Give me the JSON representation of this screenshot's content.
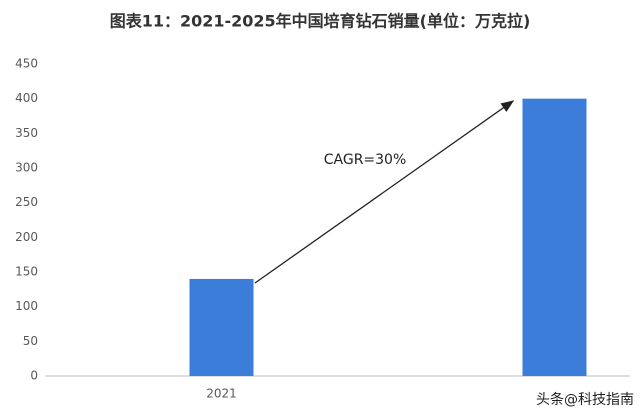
{
  "chart_data": {
    "type": "bar",
    "title": "图表11：2021-2025年中国培育钻石销量(单位：万克拉)",
    "categories": [
      "2021",
      null
    ],
    "values": [
      140,
      400
    ],
    "color": "#3b7dd8",
    "ylim": [
      0,
      450
    ],
    "yticks": [
      0,
      50,
      100,
      150,
      200,
      250,
      300,
      350,
      400,
      450
    ],
    "grid": false,
    "annotations": [
      "CAGR=30%",
      "头条@科技指南"
    ]
  }
}
